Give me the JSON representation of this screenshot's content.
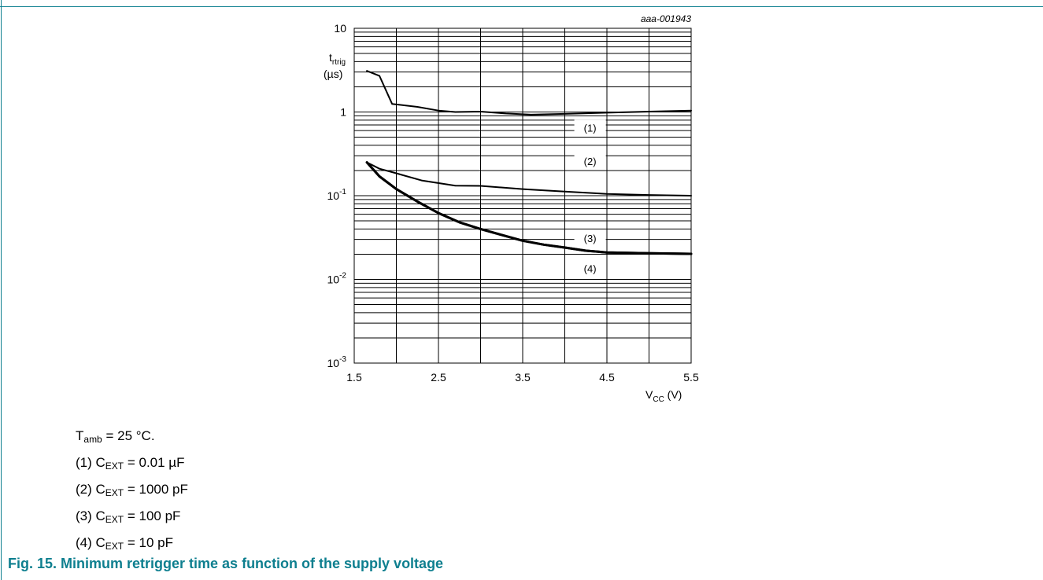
{
  "figure_id": "aaa-001943",
  "accent_color": "#0e7f8f",
  "caption": "Fig. 15.  Minimum retrigger time as function of the supply voltage",
  "notes": {
    "temperature": {
      "sym": "T",
      "sub": "amb",
      "text": " = 25 °C."
    },
    "items": [
      {
        "prefix": "(1) C",
        "sub": "EXT",
        "text": " = 0.01 µF"
      },
      {
        "prefix": "(2) C",
        "sub": "EXT",
        "text": " = 1000 pF"
      },
      {
        "prefix": "(3) C",
        "sub": "EXT",
        "text": " = 100 pF"
      },
      {
        "prefix": "(4) C",
        "sub": "EXT",
        "text": " = 10 pF"
      }
    ]
  },
  "chart_data": {
    "type": "line",
    "title": "",
    "xlabel": {
      "main": "V",
      "sub": "CC",
      "unit": " (V)"
    },
    "ylabel": {
      "main": "t",
      "sub": "rtrig",
      "unit": "(µs)"
    },
    "xlim": [
      1.5,
      5.5
    ],
    "ylim": [
      0.001,
      10
    ],
    "yscale": "log",
    "grid": true,
    "x_ticks": [
      "1.5",
      "2.5",
      "3.5",
      "4.5",
      "5.5"
    ],
    "y_ticks": [
      {
        "base": "10",
        "exp": "-3"
      },
      {
        "base": "10",
        "exp": "-2"
      },
      {
        "base": "10",
        "exp": "-1"
      },
      {
        "base": "1",
        "exp": ""
      },
      {
        "base": "10",
        "exp": ""
      }
    ],
    "series": [
      {
        "name": "(1)",
        "label_at": [
          4.3,
          0.65
        ],
        "linewidth": 2,
        "x": [
          1.65,
          1.8,
          1.95,
          2.25,
          2.5,
          2.7,
          3.0,
          3.3,
          3.6,
          4.0,
          4.5,
          5.0,
          5.5
        ],
        "y": [
          3.1,
          2.7,
          1.25,
          1.15,
          1.04,
          1.0,
          1.01,
          0.96,
          0.93,
          0.95,
          0.98,
          1.01,
          1.04
        ]
      },
      {
        "name": "(2)",
        "label_at": [
          4.3,
          0.26
        ],
        "linewidth": 2,
        "x": [
          1.65,
          1.8,
          2.0,
          2.3,
          2.7,
          3.0,
          3.5,
          4.0,
          4.5,
          5.0,
          5.5
        ],
        "y": [
          0.25,
          0.21,
          0.185,
          0.152,
          0.132,
          0.131,
          0.12,
          0.112,
          0.105,
          0.102,
          0.1
        ]
      },
      {
        "name": "(3)",
        "label_at": [
          4.3,
          0.031
        ],
        "linewidth": 3,
        "x": [
          1.65,
          1.8,
          2.0,
          2.25,
          2.5,
          2.75,
          3.0,
          3.25,
          3.5,
          3.75,
          4.0,
          4.25,
          4.5,
          5.0,
          5.5
        ],
        "y": [
          0.25,
          0.17,
          0.12,
          0.085,
          0.062,
          0.048,
          0.04,
          0.034,
          0.029,
          0.026,
          0.024,
          0.022,
          0.021,
          0.0205,
          0.0202
        ]
      },
      {
        "name": "(4)",
        "label_at": [
          4.3,
          0.0135
        ],
        "linewidth": 3,
        "x": [
          1.65,
          1.8,
          2.0,
          2.25,
          2.5,
          2.75,
          3.0,
          3.25,
          3.5,
          3.75,
          4.0,
          4.25,
          4.5,
          5.0,
          5.5
        ],
        "y": [
          0.25,
          0.17,
          0.12,
          0.085,
          0.062,
          0.048,
          0.04,
          0.034,
          0.029,
          0.026,
          0.024,
          0.022,
          0.021,
          0.0205,
          0.0202
        ]
      }
    ]
  }
}
